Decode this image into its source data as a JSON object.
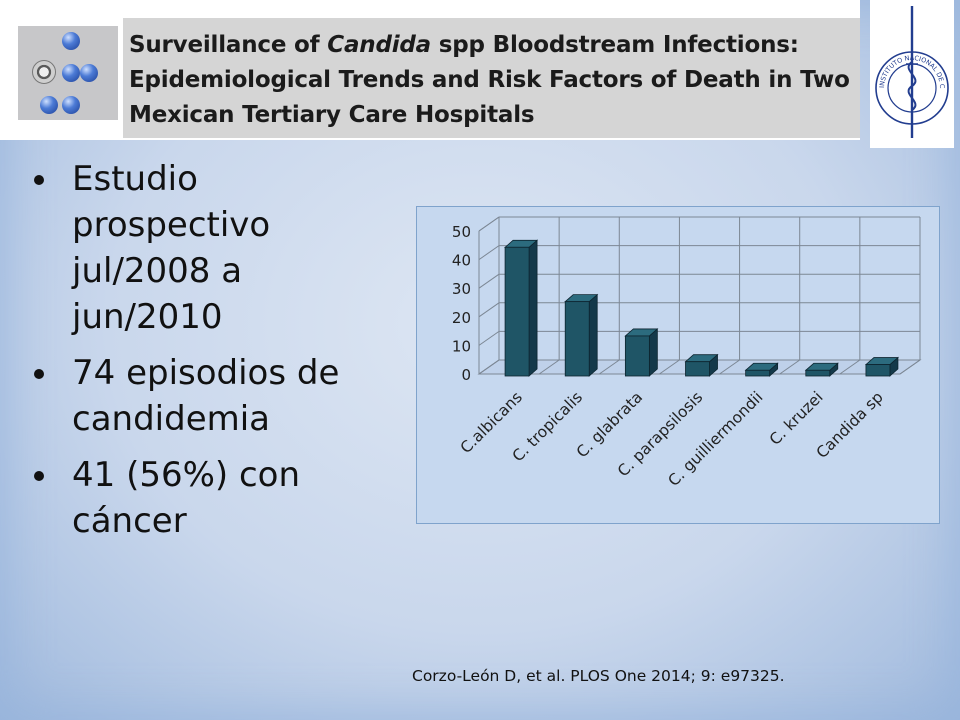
{
  "header": {
    "title_parts": {
      "line1_pre": "Surveillance of ",
      "line1_italic": "Candida",
      "line1_post": " spp Bloodstream Infections:",
      "line2": "Epidemiological Trends and Risk Factors of Death in Two",
      "line3": "Mexican Tertiary Care Hospitals"
    },
    "seal_text": "INSTITUTO NACIONAL DE CANCEROLOGIA México"
  },
  "bullets": [
    "Estudio prospectivo jul/2008 a jun/2010",
    "74 episodios de candidemia",
    "41 (56%) con cáncer"
  ],
  "chart_data": {
    "type": "bar",
    "categories": [
      "C.albicans",
      "C. tropicalis",
      "C. glabrata",
      "C. parapsilosis",
      "C. guilliermondii",
      "C. kruzei",
      "Candida sp"
    ],
    "values": [
      45,
      26,
      14,
      5,
      2,
      2,
      4
    ],
    "ylim": [
      0,
      50
    ],
    "yticks": [
      "0",
      "10",
      "20",
      "30",
      "40",
      "50"
    ],
    "bar_color": "#1f5566",
    "grid": true,
    "title": "",
    "xlabel": "",
    "ylabel": ""
  },
  "citation": "Corzo-León D, et al. PLOS One 2014; 9: e97325."
}
